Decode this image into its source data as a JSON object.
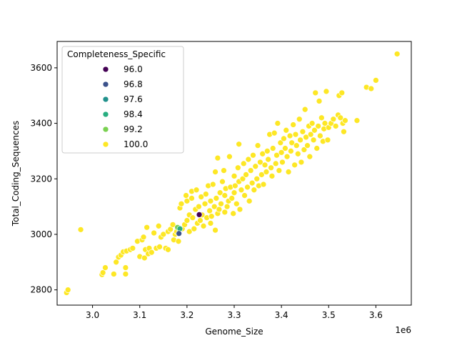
{
  "chart_data": {
    "type": "scatter",
    "xlabel": "Genome_Size",
    "ylabel": "Total_Coding_Sequences",
    "x_multiplier_label": "1e6",
    "x_multiplier": 1000000,
    "xlim": [
      2.925,
      3.675
    ],
    "ylim": [
      2745,
      3695
    ],
    "x_ticks": [
      3.0,
      3.1,
      3.2,
      3.3,
      3.4,
      3.5,
      3.6
    ],
    "x_tick_labels": [
      "3.0",
      "3.1",
      "3.2",
      "3.3",
      "3.4",
      "3.5",
      "3.6"
    ],
    "y_ticks": [
      2800,
      3000,
      3200,
      3400,
      3600
    ],
    "y_tick_labels": [
      "2800",
      "3000",
      "3200",
      "3400",
      "3600"
    ],
    "grid": false,
    "legend": {
      "title": "Completeness_Specific",
      "placement": "top-left",
      "entries": [
        {
          "label": "96.0",
          "color": "#440154"
        },
        {
          "label": "96.8",
          "color": "#3b528b"
        },
        {
          "label": "97.6",
          "color": "#21918c"
        },
        {
          "label": "98.4",
          "color": "#28ae80"
        },
        {
          "label": "99.2",
          "color": "#7ad151"
        },
        {
          "label": "100.0",
          "color": "#fde725"
        }
      ]
    },
    "series": [
      {
        "name": "100.0",
        "color": "#fde725",
        "points": [
          [
            2.945,
            2790
          ],
          [
            2.948,
            2800
          ],
          [
            2.975,
            3017
          ],
          [
            3.02,
            2855
          ],
          [
            3.022,
            2862
          ],
          [
            3.027,
            2880
          ],
          [
            3.045,
            2857
          ],
          [
            3.05,
            2900
          ],
          [
            3.055,
            2918
          ],
          [
            3.06,
            2925
          ],
          [
            3.065,
            2937
          ],
          [
            3.07,
            2857
          ],
          [
            3.07,
            2880
          ],
          [
            3.072,
            2940
          ],
          [
            3.08,
            2945
          ],
          [
            3.085,
            2950
          ],
          [
            3.095,
            2975
          ],
          [
            3.1,
            2920
          ],
          [
            3.105,
            2980
          ],
          [
            3.108,
            2990
          ],
          [
            3.11,
            2915
          ],
          [
            3.112,
            2945
          ],
          [
            3.115,
            3025
          ],
          [
            3.118,
            2930
          ],
          [
            3.12,
            2950
          ],
          [
            3.125,
            2935
          ],
          [
            3.13,
            3005
          ],
          [
            3.135,
            2950
          ],
          [
            3.14,
            3030
          ],
          [
            3.142,
            2955
          ],
          [
            3.145,
            2990
          ],
          [
            3.15,
            3000
          ],
          [
            3.155,
            2950
          ],
          [
            3.16,
            2945
          ],
          [
            3.16,
            3010
          ],
          [
            3.165,
            3018
          ],
          [
            3.17,
            3035
          ],
          [
            3.172,
            2980
          ],
          [
            3.175,
            3000
          ],
          [
            3.178,
            3010
          ],
          [
            3.18,
            3025
          ],
          [
            3.182,
            2975
          ],
          [
            3.185,
            3095
          ],
          [
            3.188,
            3110
          ],
          [
            3.19,
            3020
          ],
          [
            3.195,
            3035
          ],
          [
            3.198,
            3140
          ],
          [
            3.2,
            3050
          ],
          [
            3.2,
            3120
          ],
          [
            3.205,
            3010
          ],
          [
            3.205,
            3070
          ],
          [
            3.21,
            3130
          ],
          [
            3.21,
            3155
          ],
          [
            3.212,
            3060
          ],
          [
            3.215,
            3020
          ],
          [
            3.218,
            3090
          ],
          [
            3.22,
            3160
          ],
          [
            3.222,
            3040
          ],
          [
            3.225,
            3100
          ],
          [
            3.228,
            3050
          ],
          [
            3.23,
            3135
          ],
          [
            3.232,
            3070
          ],
          [
            3.235,
            3030
          ],
          [
            3.238,
            3110
          ],
          [
            3.24,
            3145
          ],
          [
            3.242,
            3060
          ],
          [
            3.245,
            3175
          ],
          [
            3.248,
            3085
          ],
          [
            3.25,
            3040
          ],
          [
            3.25,
            3120
          ],
          [
            3.252,
            3065
          ],
          [
            3.255,
            3180
          ],
          [
            3.258,
            3100
          ],
          [
            3.26,
            3015
          ],
          [
            3.26,
            3225
          ],
          [
            3.262,
            3130
          ],
          [
            3.265,
            3075
          ],
          [
            3.265,
            3275
          ],
          [
            3.268,
            3090
          ],
          [
            3.27,
            3150
          ],
          [
            3.272,
            3110
          ],
          [
            3.275,
            3190
          ],
          [
            3.278,
            3230
          ],
          [
            3.28,
            3080
          ],
          [
            3.28,
            3140
          ],
          [
            3.282,
            3165
          ],
          [
            3.285,
            3100
          ],
          [
            3.288,
            3120
          ],
          [
            3.29,
            3280
          ],
          [
            3.292,
            3170
          ],
          [
            3.295,
            3130
          ],
          [
            3.298,
            3075
          ],
          [
            3.3,
            3150
          ],
          [
            3.3,
            3210
          ],
          [
            3.302,
            3175
          ],
          [
            3.305,
            3110
          ],
          [
            3.308,
            3240
          ],
          [
            3.31,
            3190
          ],
          [
            3.31,
            3325
          ],
          [
            3.312,
            3090
          ],
          [
            3.315,
            3160
          ],
          [
            3.318,
            3200
          ],
          [
            3.32,
            3255
          ],
          [
            3.322,
            3140
          ],
          [
            3.325,
            3215
          ],
          [
            3.328,
            3170
          ],
          [
            3.33,
            3270
          ],
          [
            3.332,
            3120
          ],
          [
            3.335,
            3230
          ],
          [
            3.338,
            3185
          ],
          [
            3.34,
            3285
          ],
          [
            3.342,
            3160
          ],
          [
            3.345,
            3245
          ],
          [
            3.348,
            3200
          ],
          [
            3.35,
            3320
          ],
          [
            3.352,
            3175
          ],
          [
            3.355,
            3260
          ],
          [
            3.358,
            3215
          ],
          [
            3.36,
            3290
          ],
          [
            3.362,
            3180
          ],
          [
            3.365,
            3250
          ],
          [
            3.368,
            3225
          ],
          [
            3.37,
            3300
          ],
          [
            3.372,
            3270
          ],
          [
            3.375,
            3360
          ],
          [
            3.378,
            3240
          ],
          [
            3.38,
            3210
          ],
          [
            3.382,
            3310
          ],
          [
            3.385,
            3365
          ],
          [
            3.388,
            3255
          ],
          [
            3.39,
            3285
          ],
          [
            3.392,
            3400
          ],
          [
            3.395,
            3230
          ],
          [
            3.398,
            3330
          ],
          [
            3.4,
            3295
          ],
          [
            3.402,
            3260
          ],
          [
            3.405,
            3345
          ],
          [
            3.408,
            3310
          ],
          [
            3.41,
            3375
          ],
          [
            3.412,
            3280
          ],
          [
            3.415,
            3225
          ],
          [
            3.418,
            3355
          ],
          [
            3.42,
            3300
          ],
          [
            3.422,
            3330
          ],
          [
            3.425,
            3395
          ],
          [
            3.428,
            3250
          ],
          [
            3.43,
            3360
          ],
          [
            3.432,
            3320
          ],
          [
            3.435,
            3290
          ],
          [
            3.438,
            3415
          ],
          [
            3.44,
            3340
          ],
          [
            3.442,
            3260
          ],
          [
            3.445,
            3370
          ],
          [
            3.448,
            3305
          ],
          [
            3.45,
            3450
          ],
          [
            3.452,
            3350
          ],
          [
            3.455,
            3320
          ],
          [
            3.458,
            3390
          ],
          [
            3.46,
            3280
          ],
          [
            3.462,
            3360
          ],
          [
            3.465,
            3400
          ],
          [
            3.468,
            3340
          ],
          [
            3.47,
            3375
          ],
          [
            3.472,
            3510
          ],
          [
            3.475,
            3310
          ],
          [
            3.478,
            3390
          ],
          [
            3.48,
            3480
          ],
          [
            3.482,
            3355
          ],
          [
            3.485,
            3420
          ],
          [
            3.488,
            3335
          ],
          [
            3.49,
            3380
          ],
          [
            3.492,
            3400
          ],
          [
            3.495,
            3515
          ],
          [
            3.498,
            3340
          ],
          [
            3.5,
            3385
          ],
          [
            3.505,
            3400
          ],
          [
            3.51,
            3415
          ],
          [
            3.515,
            3390
          ],
          [
            3.52,
            3430
          ],
          [
            3.522,
            3500
          ],
          [
            3.525,
            3420
          ],
          [
            3.528,
            3510
          ],
          [
            3.53,
            3400
          ],
          [
            3.532,
            3370
          ],
          [
            3.535,
            3410
          ],
          [
            3.56,
            3410
          ],
          [
            3.58,
            3530
          ],
          [
            3.59,
            3525
          ],
          [
            3.6,
            3555
          ],
          [
            3.645,
            3650
          ]
        ]
      },
      {
        "name": "99.2",
        "color": "#7ad151",
        "points": [
          [
            3.18,
            3025
          ]
        ]
      },
      {
        "name": "98.4",
        "color": "#28ae80",
        "points": [
          [
            3.185,
            3020
          ]
        ]
      },
      {
        "name": "96.8",
        "color": "#3b528b",
        "points": [
          [
            3.183,
            3003
          ]
        ]
      },
      {
        "name": "96.0",
        "color": "#440154",
        "points": [
          [
            3.226,
            3071
          ]
        ]
      }
    ]
  }
}
